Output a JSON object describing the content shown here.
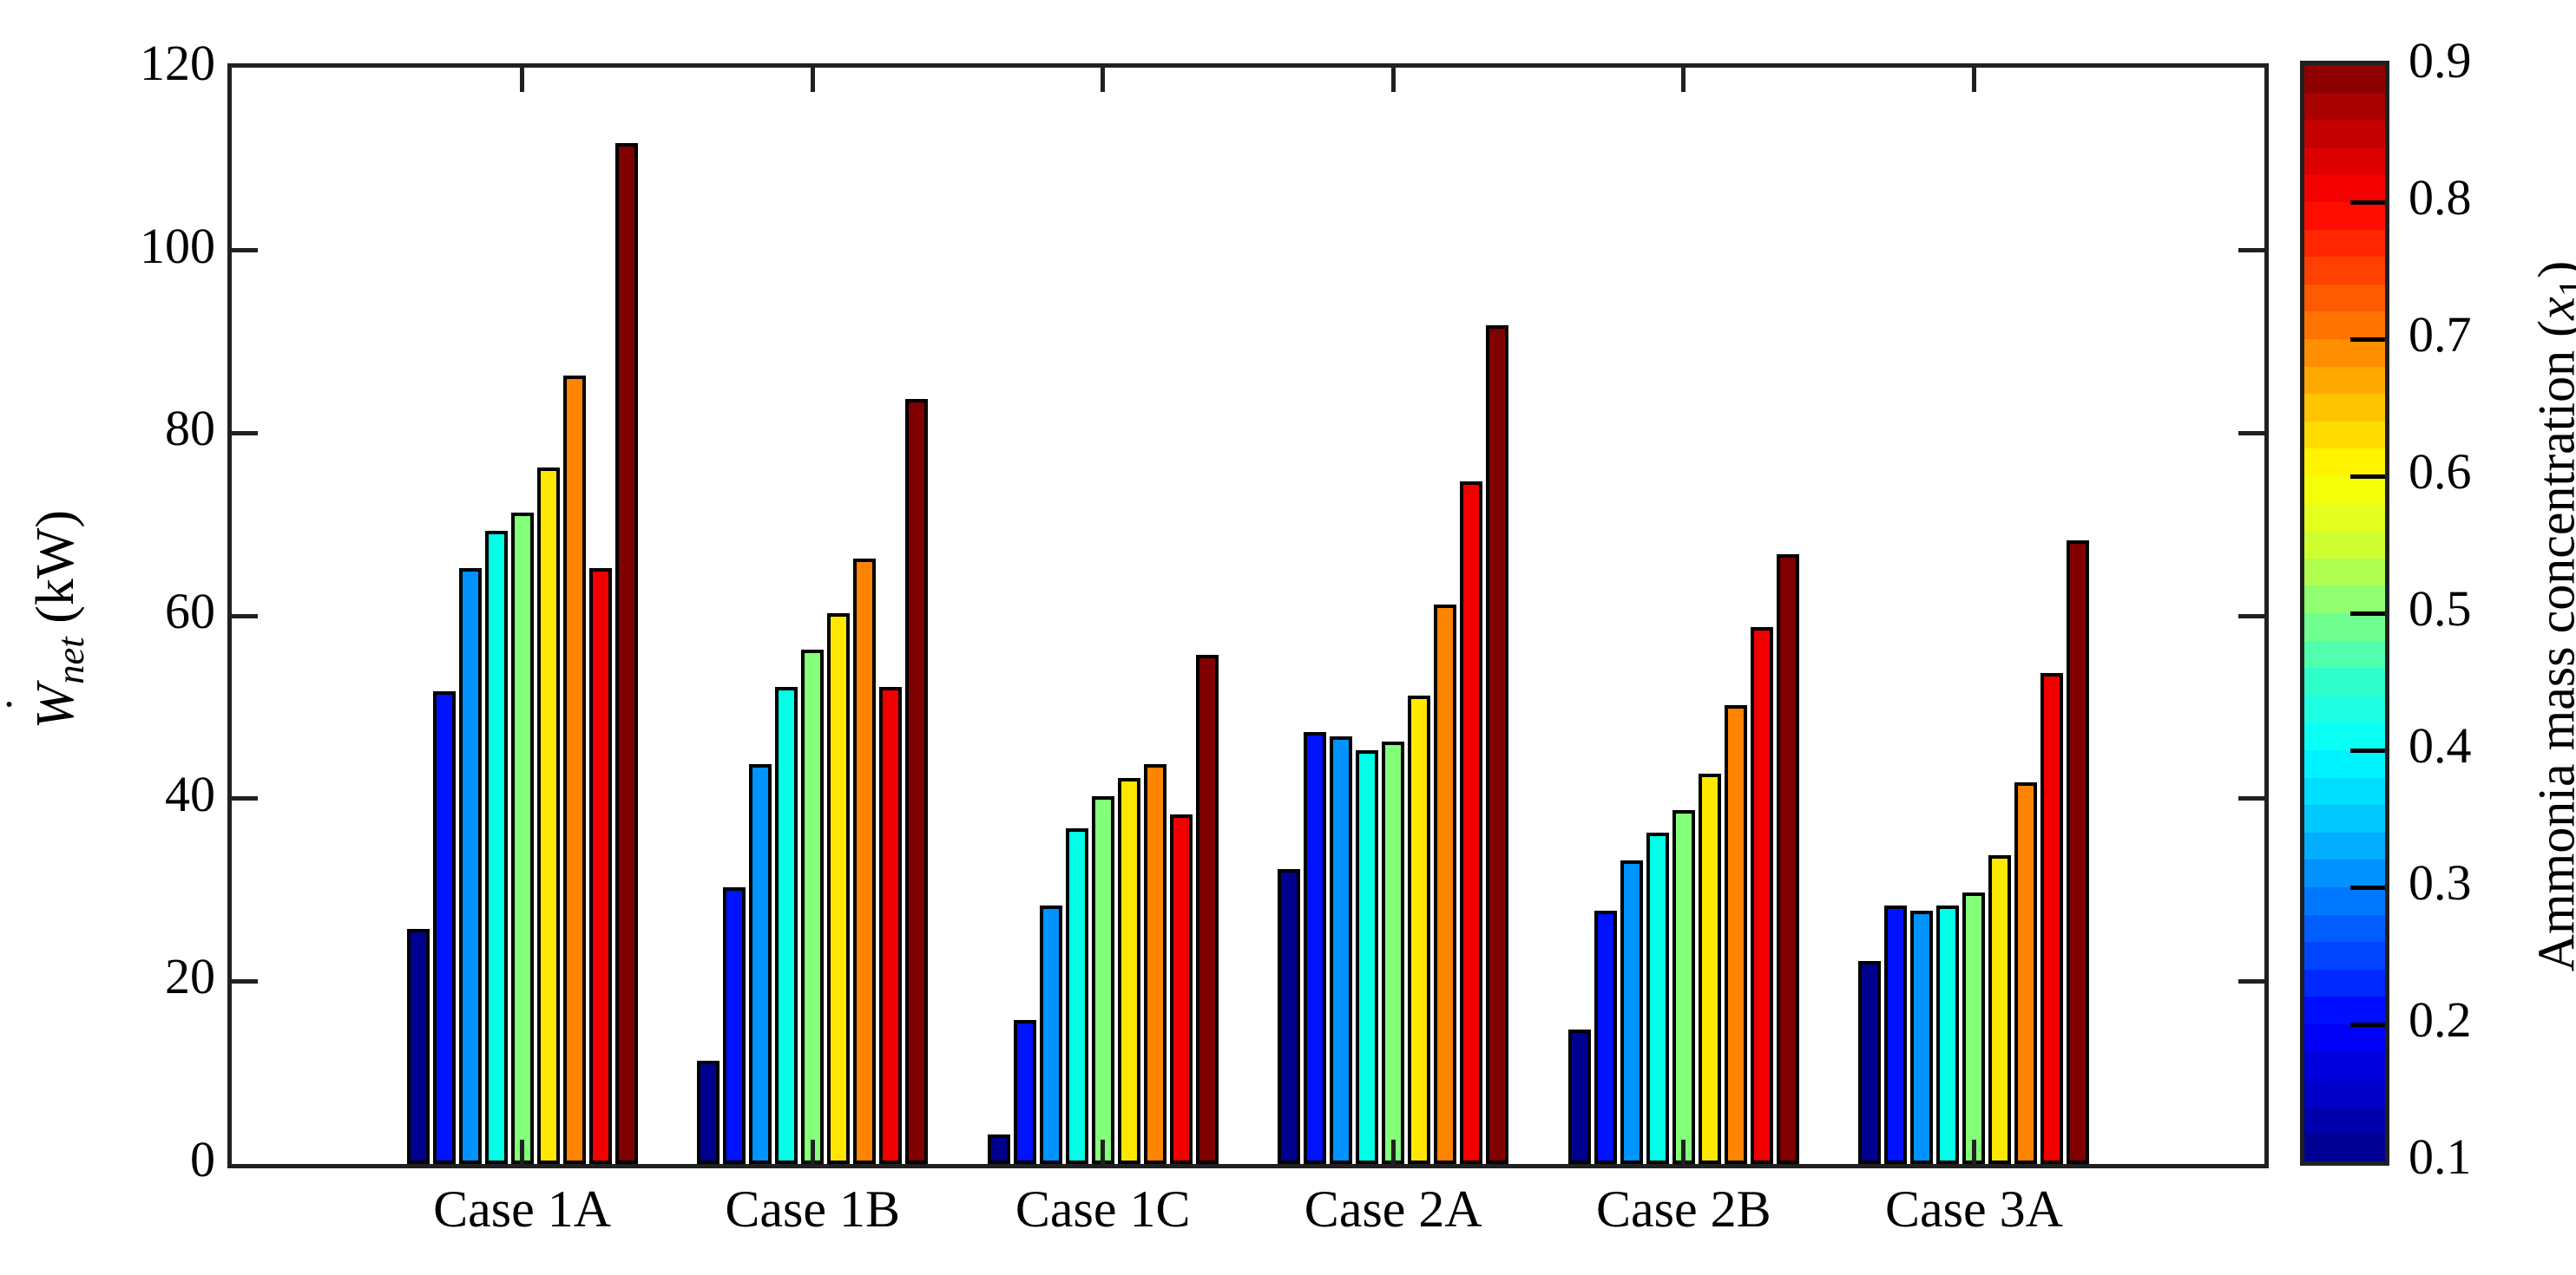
{
  "figure": {
    "background": "#ffffff",
    "axis_color": "#202020",
    "bar_outline_color": "#000000",
    "ylabel_parts": {
      "variable": "W",
      "overdot": "˙",
      "subscript": "net",
      "unit_suffix": " (kW)"
    },
    "colorbar_label_parts": {
      "text_before": "Ammonia mass concentration (",
      "variable": "x",
      "subscript": "1",
      "text_after": ")"
    }
  },
  "chart_data": {
    "type": "bar",
    "title": "",
    "xlabel": "",
    "ylabel": "W_net (kW)",
    "ylim": [
      0,
      120
    ],
    "yticks": [
      0,
      20,
      40,
      60,
      80,
      100,
      120
    ],
    "ytick_labels": [
      "0",
      "20",
      "40",
      "60",
      "80",
      "100",
      "120"
    ],
    "grid": false,
    "legend_position": "colorbar-right",
    "categories": [
      "Case 1A",
      "Case 1B",
      "Case 1C",
      "Case 2A",
      "Case 2B",
      "Case 3A"
    ],
    "series_parameter": "Ammonia mass concentration (x1)",
    "series": [
      {
        "name": "0.1",
        "color": "#00008f",
        "values": [
          25.0,
          10.5,
          2.5,
          31.5,
          14.0,
          21.5
        ]
      },
      {
        "name": "0.2",
        "color": "#0012ff",
        "values": [
          51.0,
          29.5,
          15.0,
          46.5,
          27.0,
          27.5
        ]
      },
      {
        "name": "0.3",
        "color": "#0092ff",
        "values": [
          64.5,
          43.0,
          27.5,
          46.0,
          32.5,
          27.0
        ]
      },
      {
        "name": "0.4",
        "color": "#00ffe6",
        "values": [
          68.5,
          51.5,
          36.0,
          44.5,
          35.5,
          27.5
        ]
      },
      {
        "name": "0.5",
        "color": "#84ff79",
        "values": [
          70.5,
          55.5,
          39.5,
          45.5,
          38.0,
          29.0
        ]
      },
      {
        "name": "0.6",
        "color": "#ffe800",
        "values": [
          75.5,
          59.5,
          41.5,
          50.5,
          42.0,
          33.0
        ]
      },
      {
        "name": "0.7",
        "color": "#ff8400",
        "values": [
          85.5,
          65.5,
          43.0,
          60.5,
          49.5,
          41.0
        ]
      },
      {
        "name": "0.8",
        "color": "#f20000",
        "values": [
          64.5,
          51.5,
          37.5,
          74.0,
          58.0,
          53.0
        ]
      },
      {
        "name": "0.9",
        "color": "#800000",
        "values": [
          111.0,
          83.0,
          55.0,
          91.0,
          66.0,
          67.5
        ]
      }
    ],
    "colorbar": {
      "range": [
        0.1,
        0.9
      ],
      "ticks": [
        0.1,
        0.2,
        0.3,
        0.4,
        0.5,
        0.6,
        0.7,
        0.8,
        0.9
      ],
      "tick_labels": [
        "0.1",
        "0.2",
        "0.3",
        "0.4",
        "0.5",
        "0.6",
        "0.7",
        "0.8",
        "0.9"
      ],
      "bands": 40,
      "gradient_stops": [
        {
          "v": 0.1,
          "color": "#000085"
        },
        {
          "v": 0.15,
          "color": "#0000c8"
        },
        {
          "v": 0.2,
          "color": "#0000ff"
        },
        {
          "v": 0.25,
          "color": "#0044ff"
        },
        {
          "v": 0.3,
          "color": "#0084ff"
        },
        {
          "v": 0.35,
          "color": "#00c8ff"
        },
        {
          "v": 0.4,
          "color": "#00ffff"
        },
        {
          "v": 0.45,
          "color": "#30ffcc"
        },
        {
          "v": 0.5,
          "color": "#80ff80"
        },
        {
          "v": 0.55,
          "color": "#d0ff30"
        },
        {
          "v": 0.6,
          "color": "#ffff00"
        },
        {
          "v": 0.65,
          "color": "#ffc400"
        },
        {
          "v": 0.7,
          "color": "#ff8000"
        },
        {
          "v": 0.75,
          "color": "#ff4000"
        },
        {
          "v": 0.8,
          "color": "#ff0000"
        },
        {
          "v": 0.85,
          "color": "#c40000"
        },
        {
          "v": 0.9,
          "color": "#800000"
        }
      ]
    }
  }
}
